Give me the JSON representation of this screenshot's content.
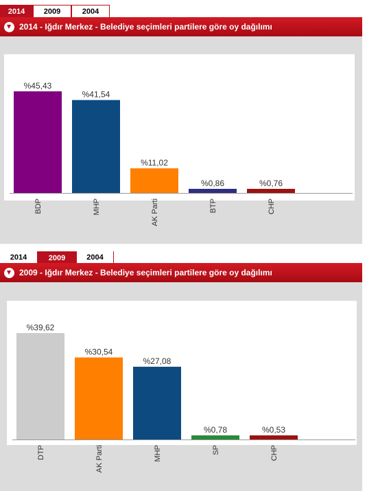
{
  "panels": [
    {
      "tabs": [
        "2014",
        "2009",
        "2004"
      ],
      "active_tab": 0,
      "header_title": "2014 - Iğdır Merkez - Belediye seçimleri partilere göre oy dağılımı",
      "chart_data": {
        "type": "bar",
        "title": "2014 - Iğdır Merkez - Belediye seçimleri partilere göre oy dağılımı",
        "categories": [
          "BDP",
          "MHP",
          "AK Parti",
          "BTP",
          "CHP"
        ],
        "values": [
          45.43,
          41.54,
          11.02,
          0.86,
          0.76
        ],
        "value_labels": [
          "%45,43",
          "%41,54",
          "%11,02",
          "%0,86",
          "%0,76"
        ],
        "colors": [
          "#800080",
          "#0d4a80",
          "#ff7f00",
          "#2e2f80",
          "#9c1212"
        ],
        "ylim": [
          0,
          45.43
        ],
        "grid": false,
        "legend": "none"
      }
    },
    {
      "tabs": [
        "2014",
        "2009",
        "2004"
      ],
      "active_tab": 1,
      "header_title": "2009 - Iğdır Merkez - Belediye seçimleri partilere göre oy dağılımı",
      "chart_data": {
        "type": "bar",
        "title": "2009 - Iğdır Merkez - Belediye seçimleri partilere göre oy dağılımı",
        "categories": [
          "DTP",
          "AK Parti",
          "MHP",
          "SP",
          "CHP"
        ],
        "values": [
          39.62,
          30.54,
          27.08,
          0.78,
          0.53
        ],
        "value_labels": [
          "%39,62",
          "%30,54",
          "%27,08",
          "%0,78",
          "%0,53"
        ],
        "colors": [
          "#cccccc",
          "#ff7f00",
          "#0d4a80",
          "#2a8a3a",
          "#9c1212"
        ],
        "ylim": [
          0,
          39.62
        ],
        "grid": false,
        "legend": "none"
      }
    }
  ]
}
